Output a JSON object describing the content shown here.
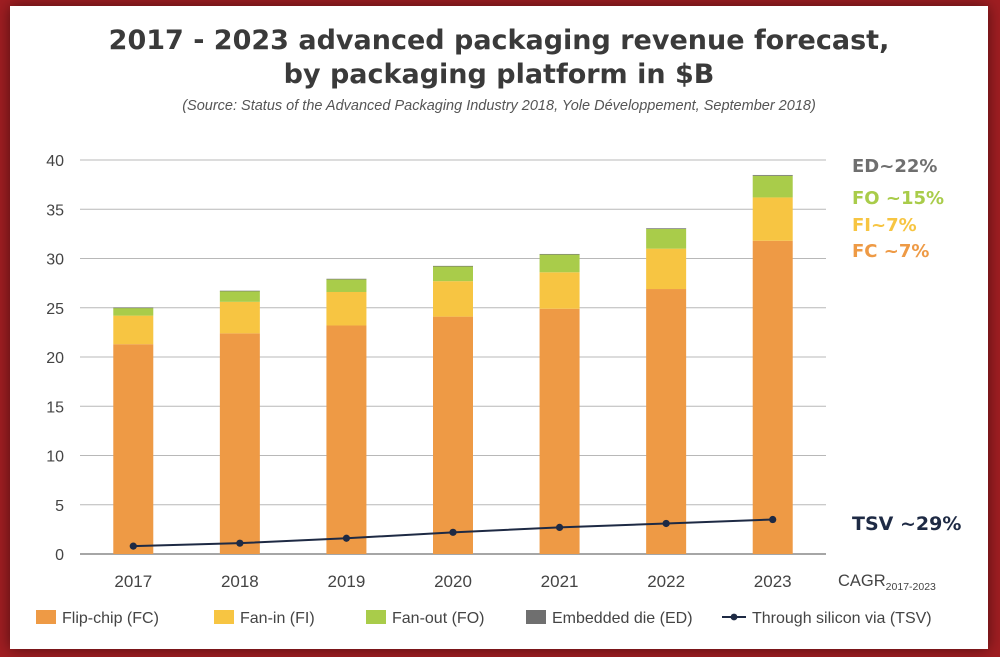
{
  "title_line1": "2017 - 2023 advanced packaging revenue forecast,",
  "title_line2": "by packaging platform in $B",
  "source": "(Source: Status of the Advanced Packaging Industry 2018, Yole Développement, September 2018)",
  "colors": {
    "FC": "#ee9a45",
    "FI": "#f7c542",
    "FO": "#a9cc4a",
    "ED": "#6f6f6f",
    "TSV": "#1e2a44"
  },
  "chart_data": {
    "type": "bar",
    "stacked": true,
    "categories": [
      "2017",
      "2018",
      "2019",
      "2020",
      "2021",
      "2022",
      "2023"
    ],
    "ylim": [
      0,
      40
    ],
    "yticks": [
      "0",
      "5",
      "10",
      "15",
      "20",
      "25",
      "30",
      "35",
      "40"
    ],
    "grid": true,
    "series": [
      {
        "name": "Flip-chip (FC)",
        "key": "FC",
        "values": [
          21.3,
          22.4,
          23.2,
          24.1,
          24.9,
          26.9,
          31.8
        ]
      },
      {
        "name": "Fan-in (FI)",
        "key": "FI",
        "values": [
          2.9,
          3.2,
          3.4,
          3.6,
          3.7,
          4.1,
          4.4
        ]
      },
      {
        "name": "Fan-out (FO)",
        "key": "FO",
        "values": [
          0.8,
          1.1,
          1.3,
          1.5,
          1.8,
          2.0,
          2.2
        ]
      },
      {
        "name": "Embedded die (ED)",
        "key": "ED",
        "values": [
          0.02,
          0.03,
          0.04,
          0.05,
          0.06,
          0.07,
          0.08
        ]
      }
    ],
    "line_series": {
      "name": "Through silicon via (TSV)",
      "key": "TSV",
      "values": [
        0.8,
        1.1,
        1.6,
        2.2,
        2.7,
        3.1,
        3.5
      ]
    },
    "cagr": [
      {
        "label": "ED~22%",
        "key": "ED"
      },
      {
        "label": "FO ~15%",
        "key": "FO"
      },
      {
        "label": "FI~7%",
        "key": "FI"
      },
      {
        "label": "FC ~7%",
        "key": "FC"
      },
      {
        "label": "TSV ~29%",
        "key": "TSV"
      }
    ],
    "cagr_axis_label": "CAGR",
    "cagr_axis_sub": "2017-2023",
    "legend_position": "bottom"
  }
}
